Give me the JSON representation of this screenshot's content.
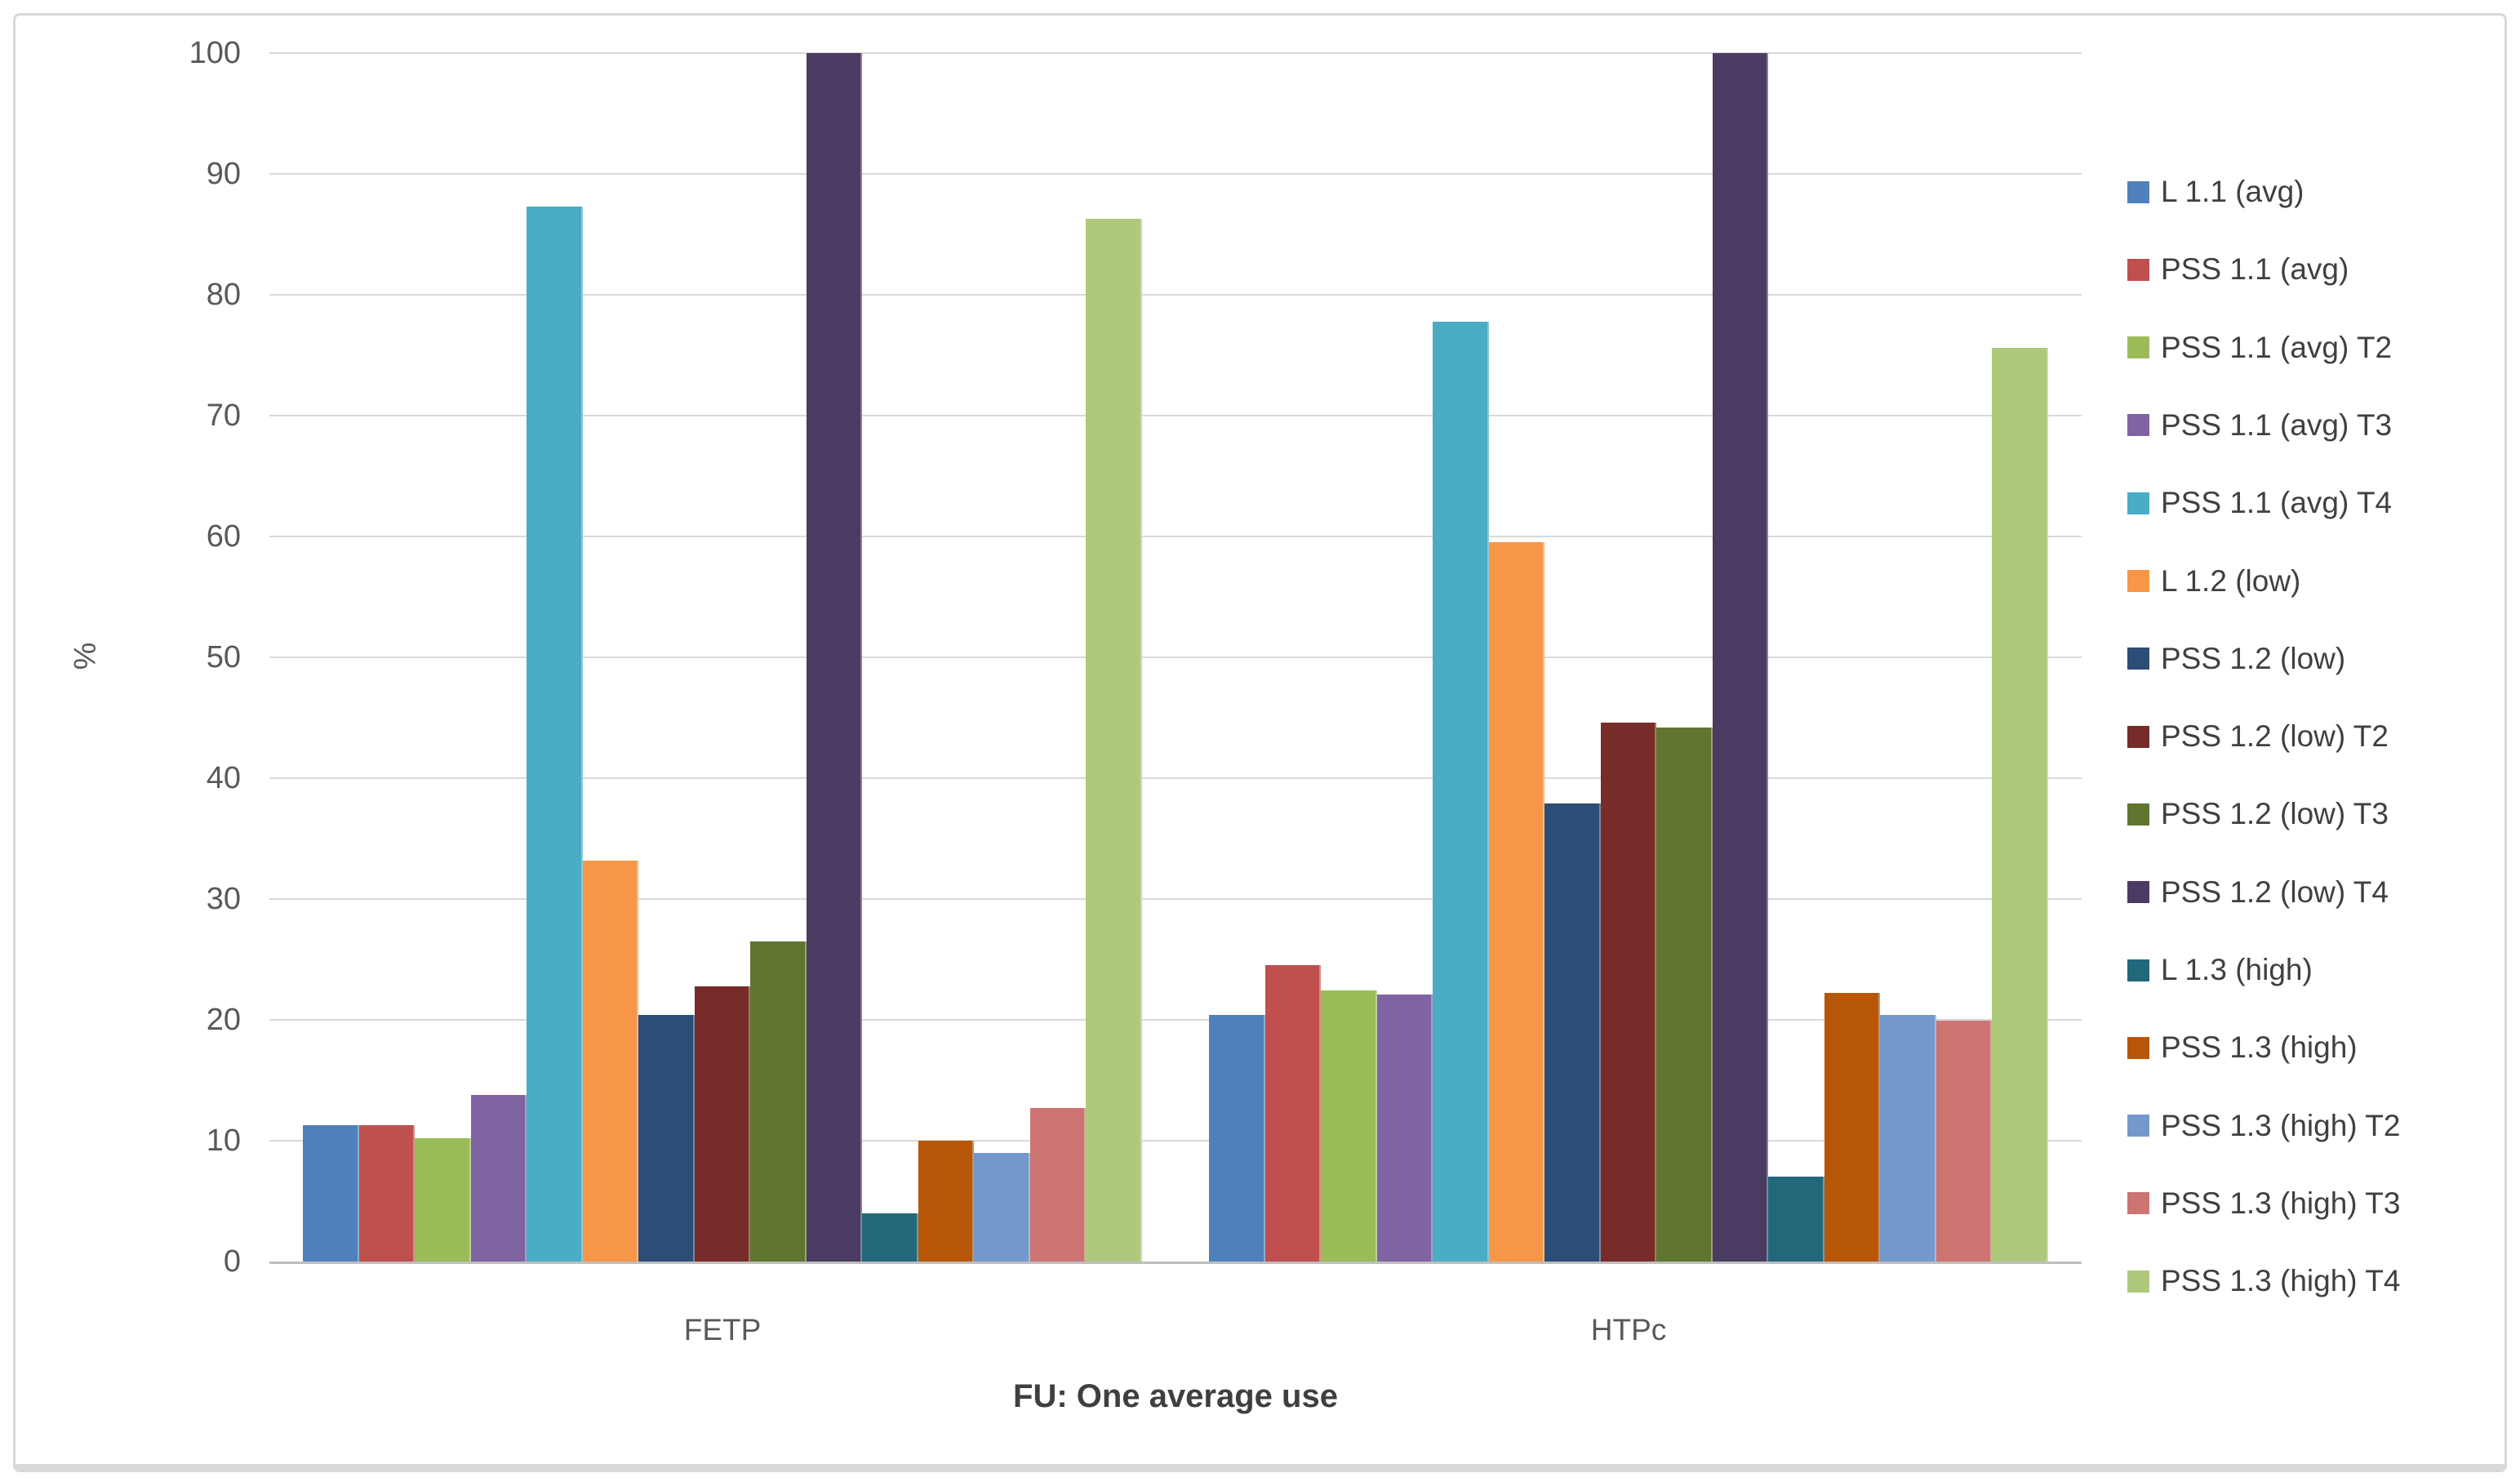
{
  "chart_data": {
    "type": "bar",
    "title": "",
    "xlabel": "FU: One average use",
    "ylabel": "%",
    "ylim": [
      0,
      100
    ],
    "yticks": [
      0,
      10,
      20,
      30,
      40,
      50,
      60,
      70,
      80,
      90,
      100
    ],
    "grid": true,
    "legend_position": "right",
    "categories": [
      "FETP",
      "HTPc"
    ],
    "series": [
      {
        "name": "L 1.1 (avg)",
        "color": "#4E81BC",
        "values": [
          11.3,
          20.4
        ]
      },
      {
        "name": "PSS 1.1  (avg)",
        "color": "#C0504D",
        "values": [
          11.3,
          24.5
        ]
      },
      {
        "name": "PSS 1.1  (avg) T2",
        "color": "#9BBB59",
        "values": [
          10.2,
          22.4
        ]
      },
      {
        "name": "PSS 1.1  (avg) T3",
        "color": "#8064A2",
        "values": [
          13.8,
          22.1
        ]
      },
      {
        "name": "PSS 1.1 (avg) T4",
        "color": "#4BACC6",
        "values": [
          87.3,
          77.8
        ]
      },
      {
        "name": "L 1.2 (low)",
        "color": "#F79646",
        "values": [
          33.2,
          59.5
        ]
      },
      {
        "name": "PSS 1.2 (low)",
        "color": "#2C4D75",
        "values": [
          20.4,
          37.9
        ]
      },
      {
        "name": "PSS 1.2 (low) T2",
        "color": "#772C2A",
        "values": [
          22.8,
          44.6
        ]
      },
      {
        "name": "PSS 1.2 (low)  T3",
        "color": "#5F7530",
        "values": [
          26.5,
          44.2
        ]
      },
      {
        "name": "PSS 1.2 (low) T4",
        "color": "#4A3B63",
        "values": [
          100,
          100
        ]
      },
      {
        "name": "L 1.3 (high)",
        "color": "#21687B",
        "values": [
          4,
          7
        ]
      },
      {
        "name": "PSS 1.3 (high)",
        "color": "#B85608",
        "values": [
          10,
          22.2
        ]
      },
      {
        "name": "PSS 1.3 (high)  T2",
        "color": "#7399CC",
        "values": [
          9,
          20.4
        ]
      },
      {
        "name": "PSS 1.3 (high) T3",
        "color": "#CC7472",
        "values": [
          12.7,
          19.9
        ]
      },
      {
        "name": "PSS 1.3 (high)  T4",
        "color": "#AEC97C",
        "values": [
          86.3,
          75.6
        ]
      }
    ]
  }
}
